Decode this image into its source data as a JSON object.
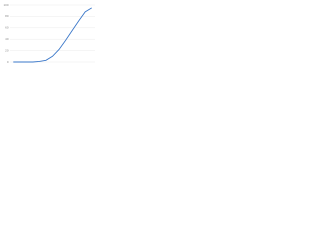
{
  "chart_data": {
    "type": "line",
    "categories": [
      null,
      null,
      null,
      null,
      null,
      null,
      null,
      null,
      null,
      null,
      null,
      null,
      null
    ],
    "series": [
      {
        "color": "#3a77c9",
        "values": [
          0,
          0,
          0,
          0,
          1,
          3,
          10,
          22,
          38,
          55,
          72,
          88,
          95
        ]
      }
    ],
    "ylim": [
      0,
      100
    ],
    "yticks": [
      0,
      20,
      40,
      60,
      80,
      100
    ],
    "grid": true
  }
}
